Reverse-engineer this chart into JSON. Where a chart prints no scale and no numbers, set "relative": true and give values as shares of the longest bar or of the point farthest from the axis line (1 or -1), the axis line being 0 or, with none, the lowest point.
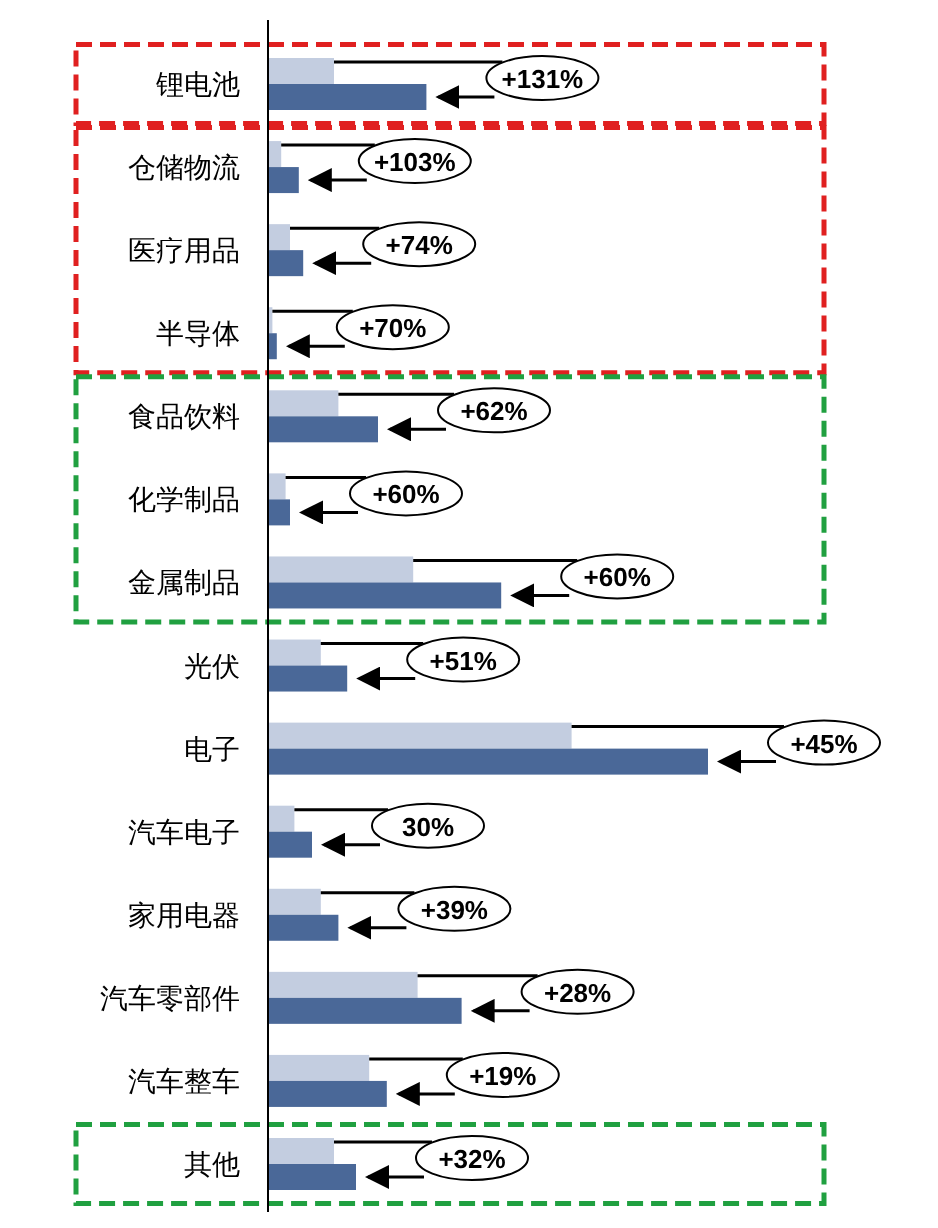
{
  "chart_data": {
    "type": "bar",
    "orientation": "horizontal",
    "relative": true,
    "categories": [
      "锂电池",
      "仓储物流",
      "医疗用品",
      "半导体",
      "食品饮料",
      "化学制品",
      "金属制品",
      "光伏",
      "电子",
      "汽车电子",
      "家用电器",
      "汽车零部件",
      "汽车整车",
      "其他"
    ],
    "series": [
      {
        "color": "#c3cde0",
        "values": [
          0.15,
          0.03,
          0.05,
          0.01,
          0.16,
          0.04,
          0.33,
          0.12,
          0.69,
          0.06,
          0.12,
          0.34,
          0.23,
          0.15
        ]
      },
      {
        "color": "#4a6898",
        "values": [
          0.36,
          0.07,
          0.08,
          0.02,
          0.25,
          0.05,
          0.53,
          0.18,
          1,
          0.1,
          0.16,
          0.44,
          0.27,
          0.2
        ]
      }
    ],
    "annotations": [
      "+131%",
      "+103%",
      "+74%",
      "+70%",
      "+62%",
      "+60%",
      "+60%",
      "+51%",
      "+45%",
      "30%",
      "+39%",
      "+28%",
      "+19%",
      "+32%"
    ]
  }
}
